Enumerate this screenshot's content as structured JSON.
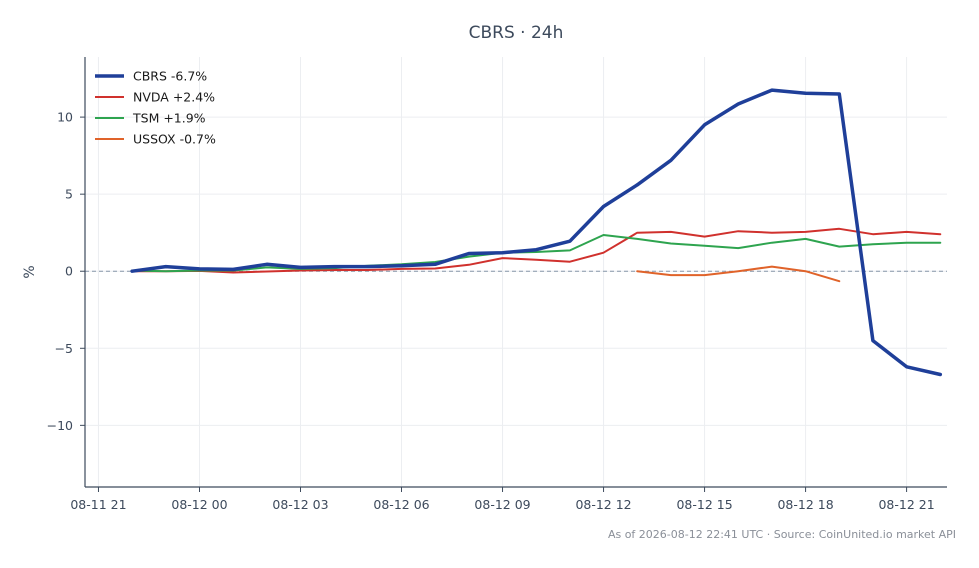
{
  "chart_data": {
    "type": "line",
    "title": "CBRS · 24h",
    "xlabel": "",
    "ylabel": "%",
    "x_tick_labels": [
      "08-11 21",
      "08-12 00",
      "08-12 03",
      "08-12 06",
      "08-12 09",
      "08-12 12",
      "08-12 15",
      "08-12 18",
      "08-12 21"
    ],
    "y_ticks": [
      -10,
      -5,
      0,
      5,
      10
    ],
    "y_tick_labels": [
      "−10",
      "−5",
      "0",
      "5",
      "10"
    ],
    "xlim": [
      -0.4,
      25.2
    ],
    "ylim": [
      -14,
      13.9
    ],
    "grid": true,
    "zero_line": true,
    "legend_position": "top-left",
    "x_unit": "hours since 08-11 21:00 UTC",
    "series": [
      {
        "name": "CBRS -6.7%",
        "color": "#1f3f99",
        "width": 3.5,
        "points": [
          [
            1,
            0.0
          ],
          [
            2,
            0.3
          ],
          [
            3,
            0.15
          ],
          [
            4,
            0.12
          ],
          [
            5,
            0.45
          ],
          [
            6,
            0.25
          ],
          [
            7,
            0.3
          ],
          [
            8,
            0.3
          ],
          [
            9,
            0.35
          ],
          [
            10,
            0.45
          ],
          [
            11,
            1.15
          ],
          [
            12,
            1.2
          ],
          [
            13,
            1.4
          ],
          [
            14,
            1.95
          ],
          [
            15,
            4.2
          ],
          [
            16,
            5.6
          ],
          [
            17,
            7.2
          ],
          [
            18,
            9.5
          ],
          [
            19,
            10.85
          ],
          [
            20,
            11.75
          ],
          [
            21,
            11.55
          ],
          [
            22,
            11.5
          ],
          [
            23,
            -4.5
          ],
          [
            24,
            -6.2
          ],
          [
            25,
            -6.7
          ]
        ]
      },
      {
        "name": "NVDA +2.4%",
        "color": "#d0312d",
        "width": 2,
        "points": [
          [
            1,
            0.0
          ],
          [
            2,
            0.0
          ],
          [
            3,
            0.02
          ],
          [
            4,
            -0.08
          ],
          [
            5,
            -0.02
          ],
          [
            6,
            0.05
          ],
          [
            7,
            0.08
          ],
          [
            8,
            0.08
          ],
          [
            9,
            0.15
          ],
          [
            10,
            0.18
          ],
          [
            11,
            0.42
          ],
          [
            12,
            0.85
          ],
          [
            13,
            0.75
          ],
          [
            14,
            0.62
          ],
          [
            15,
            1.2
          ],
          [
            16,
            2.5
          ],
          [
            17,
            2.55
          ],
          [
            18,
            2.25
          ],
          [
            19,
            2.6
          ],
          [
            20,
            2.5
          ],
          [
            21,
            2.55
          ],
          [
            22,
            2.75
          ],
          [
            23,
            2.4
          ],
          [
            24,
            2.55
          ],
          [
            25,
            2.4
          ]
        ]
      },
      {
        "name": "TSM +1.9%",
        "color": "#2ea44f",
        "width": 2,
        "points": [
          [
            1,
            0.05
          ],
          [
            2,
            0.0
          ],
          [
            3,
            0.05
          ],
          [
            4,
            0.05
          ],
          [
            5,
            0.25
          ],
          [
            6,
            0.15
          ],
          [
            7,
            0.2
          ],
          [
            8,
            0.35
          ],
          [
            9,
            0.45
          ],
          [
            10,
            0.6
          ],
          [
            11,
            0.95
          ],
          [
            12,
            1.2
          ],
          [
            13,
            1.25
          ],
          [
            14,
            1.35
          ],
          [
            15,
            2.35
          ],
          [
            16,
            2.1
          ],
          [
            17,
            1.8
          ],
          [
            18,
            1.65
          ],
          [
            19,
            1.5
          ],
          [
            20,
            1.85
          ],
          [
            21,
            2.1
          ],
          [
            22,
            1.6
          ],
          [
            23,
            1.75
          ],
          [
            24,
            1.85
          ],
          [
            25,
            1.85
          ]
        ]
      },
      {
        "name": "USSOX -0.7%",
        "color": "#e0632a",
        "width": 2,
        "points": [
          [
            16,
            0.0
          ],
          [
            17,
            -0.25
          ],
          [
            18,
            -0.25
          ],
          [
            19,
            0.0
          ],
          [
            20,
            0.3
          ],
          [
            21,
            0.0
          ],
          [
            22,
            -0.65
          ]
        ]
      }
    ]
  },
  "footer": "As of 2026-08-12 22:41 UTC · Source: CoinUnited.io market API"
}
